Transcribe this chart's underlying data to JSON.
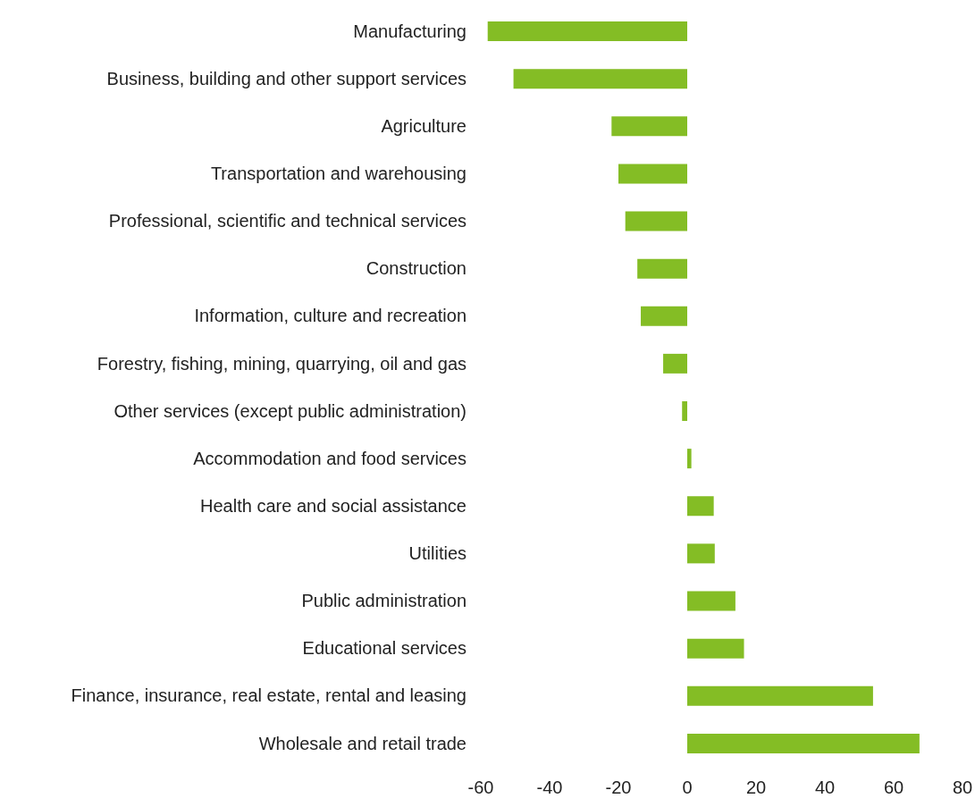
{
  "chart_data": {
    "type": "bar",
    "orientation": "horizontal",
    "categories": [
      "Manufacturing",
      "Business, building and other support services",
      "Agriculture",
      "Transportation and warehousing",
      "Professional, scientific and technical services",
      "Construction",
      "Information, culture and recreation",
      "Forestry, fishing, mining, quarrying, oil and gas",
      "Other services (except public administration)",
      "Accommodation and food services",
      "Health care and social assistance",
      "Utilities",
      "Public administration",
      "Educational services",
      "Finance, insurance, real estate, rental and leasing",
      "Wholesale and retail trade"
    ],
    "values": [
      -58,
      -50.5,
      -22,
      -20,
      -18,
      -14.5,
      -13.5,
      -7,
      -1.5,
      1.2,
      7.7,
      8,
      14,
      16.5,
      54,
      67.5
    ],
    "color": "#84bd25",
    "xlim": [
      -60,
      80
    ],
    "xticks": [
      -60,
      -40,
      -20,
      0,
      20,
      40,
      60,
      80
    ],
    "grid": false,
    "legend": false
  }
}
